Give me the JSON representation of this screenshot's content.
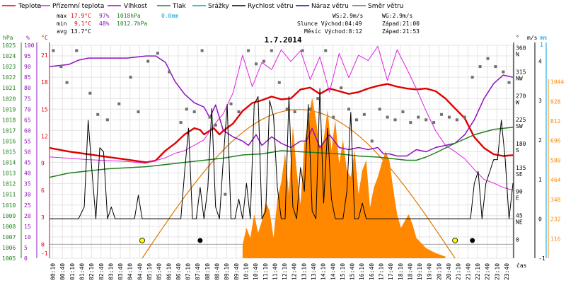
{
  "chart_data": {
    "type": "line",
    "title": "1.7.2014",
    "legend": [
      {
        "name": "Teplota",
        "color": "#e00000"
      },
      {
        "name": "Přízemní teplota",
        "color": "#e020e0"
      },
      {
        "name": "Vlhkost",
        "color": "#9010c0"
      },
      {
        "name": "Tlak",
        "color": "#208020"
      },
      {
        "name": "Srážky",
        "color": "#00a0e0"
      },
      {
        "name": "Rychlost větru",
        "color": "#000000"
      },
      {
        "name": "Náraz větru",
        "color": "#101090"
      },
      {
        "name": "Směr větru",
        "color": "#707070"
      }
    ],
    "stats": {
      "max_label": "max",
      "min_label": "min",
      "avg_label": "avg",
      "max_temp": "17.9°C",
      "max_hum": "97%",
      "max_press": "1018hPa",
      "rain": "0.0mm",
      "min_temp": "9.1°C",
      "min_hum": "48%",
      "min_press": "1012.7hPa",
      "avg_temp": "13.7°C"
    },
    "info": {
      "ws": "WS:2.9m/s",
      "wg": "WG:2.9m/s",
      "slunce": "Slunce Východ:04:49",
      "slunce_zapad": "Západ:21:00",
      "mesic": "Měsíc Východ:8:12",
      "mesic_zapad": "Západ:21:53"
    },
    "axes": {
      "hpa_unit": "hPa",
      "pct_unit": "%",
      "c_unit": "°C",
      "deg_unit": "°",
      "ms_unit": "m/s",
      "mm_unit": "mm",
      "x_unit": "čas",
      "hpa_ticks": [
        "1025",
        "1024",
        "1023",
        "1022",
        "1021",
        "1020",
        "1019",
        "1018",
        "1017",
        "1016",
        "1015",
        "1014",
        "1013",
        "1012",
        "1011",
        "1010",
        "1009",
        "1008",
        "1007",
        "1006",
        "1005"
      ],
      "hpa_values": [
        1025,
        1024,
        1023,
        1022,
        1021,
        1020,
        1019,
        1018,
        1017,
        1016,
        1015,
        1014,
        1013,
        1012,
        1011,
        1010,
        1009,
        1008,
        1007,
        1006,
        1005
      ],
      "pct_ticks": [
        "100",
        "95",
        "90",
        "85",
        "80",
        "75",
        "70",
        "65",
        "60",
        "55",
        "50",
        "45",
        "40",
        "35",
        "30",
        "25",
        "20",
        "15",
        "10",
        "5",
        "0"
      ],
      "c_ticks": [
        "21",
        "18",
        "15",
        "12",
        "9",
        "6",
        "3",
        "0",
        "-1"
      ],
      "c_values": [
        21,
        18,
        15,
        12,
        9,
        6,
        3,
        0,
        -1
      ],
      "deg_ticks": [
        {
          "v": "360",
          "d": "N",
          "at": 360
        },
        {
          "v": "315",
          "d": "NW",
          "at": 315
        },
        {
          "v": "270",
          "d": "W",
          "at": 270
        },
        {
          "v": "225",
          "d": "SW",
          "at": 225
        },
        {
          "v": "180",
          "d": "S",
          "at": 180
        },
        {
          "v": "135",
          "d": "SE",
          "at": 135
        },
        {
          "v": "90",
          "d": "E",
          "at": 90
        },
        {
          "v": "45",
          "d": "NE",
          "at": 45
        },
        {
          "v": "0",
          "d": "",
          "at": 0
        }
      ],
      "ms_ticks": [
        {
          "v": "4",
          "at": 4
        },
        {
          "v": "3",
          "at": 3
        },
        {
          "v": "2",
          "at": 2
        },
        {
          "v": "1",
          "at": 1
        },
        {
          "v": "0",
          "at": 0
        },
        {
          "v": "-1",
          "at": -1
        }
      ],
      "mm_top": "1",
      "solar_ticks": [
        {
          "v": "1044",
          "at": 1044
        },
        {
          "v": "928",
          "at": 928
        },
        {
          "v": "812",
          "at": 812
        },
        {
          "v": "696",
          "at": 696
        },
        {
          "v": "580",
          "at": 580
        },
        {
          "v": "464",
          "at": 464
        },
        {
          "v": "348",
          "at": 348
        },
        {
          "v": "232",
          "at": 232
        },
        {
          "v": "116",
          "at": 116
        }
      ],
      "x_ticks": [
        "00:10",
        "00:40",
        "01:10",
        "01:40",
        "02:10",
        "02:40",
        "03:10",
        "03:40",
        "04:10",
        "04:40",
        "05:10",
        "05:40",
        "06:10",
        "06:40",
        "07:10",
        "07:40",
        "08:10",
        "08:40",
        "09:10",
        "09:40",
        "10:10",
        "10:40",
        "11:10",
        "11:40",
        "12:10",
        "12:40",
        "13:10",
        "13:40",
        "14:10",
        "14:40",
        "15:10",
        "15:40",
        "16:10",
        "16:40",
        "17:10",
        "17:40",
        "18:10",
        "18:40",
        "19:10",
        "19:40",
        "20:10",
        "20:40",
        "21:10",
        "21:40",
        "22:10",
        "22:40",
        "23:10",
        "23:40"
      ]
    },
    "series": [
      {
        "name": "Teplota",
        "color": "#e00000",
        "x": [
          0,
          1,
          2,
          3,
          4,
          5,
          5.5,
          6,
          6.5,
          7,
          7.5,
          7.8,
          8,
          8.5,
          8.8,
          9,
          9.5,
          10,
          10.5,
          11,
          11.5,
          12,
          12.5,
          13,
          13.5,
          14,
          14.5,
          15,
          15.5,
          16,
          16.5,
          17,
          17.5,
          18,
          18.5,
          19,
          19.5,
          20,
          20.5,
          21,
          21.5,
          22,
          22.5,
          23,
          23.5,
          24
        ],
        "y": [
          10.7,
          10.3,
          10.0,
          9.7,
          9.4,
          9.1,
          9.3,
          10.4,
          11.2,
          12.2,
          12.9,
          12.7,
          12.2,
          12.9,
          12.2,
          12.6,
          13.4,
          14.8,
          15.7,
          16.0,
          16.4,
          16.1,
          16.2,
          17.2,
          17.4,
          16.7,
          17.3,
          17.0,
          16.7,
          16.9,
          17.3,
          17.6,
          17.8,
          17.5,
          17.3,
          17.2,
          17.3,
          17.0,
          16.2,
          15.1,
          14.0,
          11.9,
          10.7,
          10.0,
          9.8,
          9.9
        ]
      },
      {
        "name": "Přízemní teplota",
        "color": "#e020e0",
        "x": [
          0,
          2,
          4,
          5,
          6,
          6.5,
          7,
          7.5,
          8,
          8.5,
          9,
          9.5,
          10,
          10.5,
          11,
          11.5,
          12,
          12.5,
          13,
          13.5,
          14,
          14.5,
          15,
          15.5,
          16,
          16.5,
          17,
          17.5,
          18,
          18.5,
          19,
          19.5,
          20,
          20.5,
          21,
          21.5,
          22,
          22.5,
          23,
          23.5,
          24
        ],
        "y": [
          9.7,
          9.4,
          9.2,
          9.0,
          9.6,
          10.1,
          10.4,
          11.0,
          11.6,
          13.2,
          14.5,
          16.8,
          21.0,
          17.5,
          20.2,
          19.4,
          21.6,
          20.3,
          21.5,
          18.3,
          20.8,
          16.9,
          21.2,
          18.5,
          21.0,
          20.4,
          22.0,
          18.2,
          21.6,
          19.5,
          17.3,
          14.8,
          12.6,
          11.0,
          10.3,
          9.5,
          8.3,
          7.2,
          6.8,
          6.3,
          6.0
        ]
      },
      {
        "name": "Vlhkost",
        "color": "#9010c0",
        "x": [
          0,
          1,
          1.5,
          2,
          3,
          4,
          5,
          5.5,
          6,
          6.5,
          7,
          7.5,
          8,
          8.3,
          8.6,
          9,
          9.5,
          10,
          10.3,
          10.7,
          11,
          11.5,
          12,
          12.5,
          13,
          13.3,
          13.6,
          14,
          14.5,
          15,
          15.5,
          16,
          16.5,
          17,
          17.3,
          17.6,
          18,
          18.5,
          19,
          19.5,
          20,
          20.5,
          21,
          21.5,
          22,
          22.5,
          23,
          23.5,
          24
        ],
        "y": [
          90,
          91,
          93,
          94,
          94,
          94,
          95,
          95,
          92,
          83,
          77,
          73,
          71,
          66,
          72,
          60,
          57,
          55,
          53,
          58,
          53,
          57,
          54,
          52,
          55,
          55,
          61,
          52,
          58,
          52,
          51,
          52,
          51,
          52,
          49,
          49,
          48,
          48,
          51,
          50,
          52,
          53,
          54,
          58,
          65,
          75,
          82,
          86,
          85
        ]
      },
      {
        "name": "Tlak",
        "color": "#208020",
        "x": [
          0,
          1,
          2,
          3,
          4,
          5,
          6,
          7,
          8,
          9,
          10,
          11,
          12,
          13,
          14,
          15,
          16,
          17,
          18,
          18.5,
          19,
          19.5,
          20,
          21,
          22,
          23,
          24
        ],
        "y": [
          1012.6,
          1013.0,
          1013.2,
          1013.4,
          1013.5,
          1013.6,
          1013.8,
          1014.0,
          1014.2,
          1014.4,
          1014.7,
          1014.8,
          1015.1,
          1015.0,
          1014.9,
          1014.8,
          1014.6,
          1014.5,
          1014.3,
          1014.2,
          1014.2,
          1014.5,
          1014.9,
          1015.8,
          1016.6,
          1017.1,
          1017.3
        ]
      },
      {
        "name": "Rychlost větru",
        "color": "#000000",
        "x": [
          0,
          0.5,
          1,
          1.5,
          1.8,
          2,
          2.2,
          2.4,
          2.6,
          2.8,
          3,
          3.2,
          3.4,
          3.6,
          3.8,
          4,
          4.2,
          4.4,
          4.6,
          4.8,
          5,
          5.5,
          6,
          6.5,
          6.8,
          7,
          7.2,
          7.4,
          7.6,
          7.8,
          8,
          8.2,
          8.4,
          8.6,
          8.8,
          9,
          9.2,
          9.4,
          9.6,
          9.8,
          10,
          10.2,
          10.4,
          10.6,
          10.8,
          11,
          11.2,
          11.4,
          11.6,
          11.8,
          12,
          12.2,
          12.4,
          12.6,
          12.8,
          13,
          13.2,
          13.4,
          13.6,
          13.8,
          14,
          14.2,
          14.4,
          14.6,
          14.8,
          15,
          15.2,
          15.4,
          15.6,
          15.8,
          16,
          16.2,
          16.4,
          16.6,
          16.8,
          17,
          17.2,
          17.4,
          17.6,
          17.8,
          18,
          18.2,
          18.4,
          18.6,
          18.8,
          19,
          19.2,
          19.4,
          19.6,
          19.8,
          20,
          20.2,
          20.4,
          20.6,
          20.8,
          21,
          21.2,
          21.4,
          21.6,
          21.8,
          22,
          22.2,
          22.4,
          22.6,
          22.8,
          23,
          23.2,
          23.4,
          23.6,
          23.8,
          24
        ],
        "y": [
          0,
          0,
          0,
          0,
          0.3,
          2.5,
          1.2,
          0,
          1.8,
          1.7,
          0,
          0.3,
          0,
          0,
          0,
          0,
          0,
          0,
          0.6,
          0,
          0,
          0,
          0,
          0,
          0,
          1.2,
          2.3,
          0,
          0,
          0.8,
          0,
          0.8,
          2.8,
          0.3,
          0,
          1.5,
          2.9,
          0,
          0,
          0.5,
          0,
          0.9,
          0,
          2.9,
          3.1,
          0,
          0.2,
          3.0,
          2.6,
          0.8,
          0,
          0,
          3.1,
          0.3,
          0,
          1.3,
          0.7,
          2.9,
          0.2,
          0,
          3.3,
          0.4,
          2.3,
          0.5,
          0,
          0,
          0,
          0.7,
          2.7,
          0,
          0,
          0.4,
          0,
          0,
          0,
          0,
          0,
          0,
          0,
          0,
          0,
          0,
          0,
          0,
          0,
          0,
          0,
          0,
          0,
          0,
          0,
          0,
          0,
          0,
          0,
          0,
          0,
          0,
          0,
          0,
          0.9,
          1.2,
          0,
          0.9,
          1.2,
          1.5,
          1.5,
          2.5,
          1.5,
          0,
          0.9
        ]
      },
      {
        "name": "Směr větru",
        "color": "#707070",
        "type": "scatter",
        "x": [
          0.2,
          0.6,
          0.9,
          1.4,
          2.1,
          2.5,
          3.0,
          3.6,
          4.2,
          4.6,
          5.1,
          5.6,
          6.2,
          6.8,
          7.1,
          7.5,
          7.9,
          8.3,
          8.6,
          9.1,
          9.4,
          9.8,
          10.3,
          10.7,
          11.1,
          11.5,
          11.9,
          12.3,
          12.7,
          13.1,
          13.5,
          13.9,
          14.3,
          14.7,
          15.1,
          15.5,
          15.9,
          16.3,
          16.7,
          17.1,
          17.5,
          17.9,
          18.3,
          18.7,
          19.1,
          19.5,
          19.9,
          20.3,
          20.7,
          21.1,
          21.5,
          21.9,
          22.3,
          22.7,
          23.1,
          23.5,
          23.8
        ],
        "y": [
          360,
          330,
          300,
          360,
          280,
          240,
          230,
          260,
          310,
          245,
          340,
          355,
          320,
          225,
          250,
          245,
          360,
          235,
          220,
          90,
          260,
          245,
          360,
          335,
          340,
          360,
          300,
          250,
          245,
          360,
          250,
          270,
          360,
          235,
          290,
          250,
          230,
          240,
          190,
          250,
          235,
          230,
          245,
          225,
          235,
          230,
          225,
          240,
          235,
          230,
          235,
          310,
          330,
          345,
          330,
          320,
          300
        ]
      }
    ],
    "solar": {
      "name": "Sluneční záření",
      "color": "#ff8800",
      "x": [
        10.0,
        10.2,
        10.4,
        10.6,
        10.8,
        11.0,
        11.2,
        11.4,
        11.6,
        11.8,
        12.0,
        12.2,
        12.4,
        12.6,
        12.8,
        13.0,
        13.2,
        13.4,
        13.6,
        13.8,
        14.0,
        14.2,
        14.4,
        14.6,
        14.8,
        15.0,
        15.2,
        15.4,
        15.6,
        15.8,
        16.0,
        16.2,
        16.4,
        16.6,
        16.8,
        17.0,
        17.2,
        17.4,
        17.6,
        17.8,
        18.0,
        18.2,
        18.4,
        18.6,
        18.8,
        19.0,
        19.5,
        20.0,
        20.5
      ],
      "y": [
        80,
        180,
        120,
        260,
        150,
        220,
        330,
        280,
        120,
        350,
        450,
        620,
        380,
        780,
        520,
        320,
        680,
        820,
        950,
        820,
        650,
        700,
        880,
        640,
        820,
        560,
        700,
        520,
        480,
        640,
        380,
        520,
        580,
        300,
        420,
        480,
        560,
        630,
        580,
        410,
        260,
        180,
        220,
        260,
        200,
        120,
        60,
        30,
        10
      ]
    },
    "clear_sky_solar": {
      "x0": 4.8,
      "x1": 21.0,
      "peak": 880
    },
    "sun_marks": [
      {
        "x": 4.8
      },
      {
        "x": 21.0
      }
    ],
    "moon_marks": [
      {
        "x": 7.8
      },
      {
        "x": 21.9
      }
    ]
  }
}
